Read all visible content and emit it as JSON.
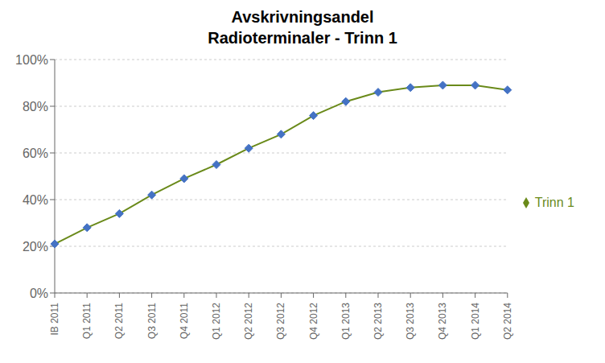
{
  "chart_data": {
    "type": "line",
    "title": "Avskrivningsandel\nRadioterminaler - Trinn 1",
    "categories": [
      "IB 2011",
      "Q1 2011",
      "Q2 2011",
      "Q3 2011",
      "Q4 2011",
      "Q1 2012",
      "Q2 2012",
      "Q3 2012",
      "Q4 2012",
      "Q1 2013",
      "Q2 2013",
      "Q3 2013",
      "Q4 2013",
      "Q1 2014",
      "Q2 2014"
    ],
    "series": [
      {
        "name": "Trinn 1",
        "color": "#6a8a1a",
        "marker": "diamond",
        "colors": [
          "#4472c4",
          "#4472c4",
          "#4472c4",
          "#4472c4",
          "#4472c4",
          "#4472c4",
          "#4472c4",
          "#4472c4",
          "#4472c4",
          "#4472c4",
          "#4472c4",
          "#4472c4",
          "#4472c4",
          "#4472c4",
          "#4472c4"
        ],
        "values": [
          0.21,
          0.28,
          0.34,
          0.42,
          0.49,
          0.55,
          0.62,
          0.68,
          0.76,
          0.82,
          0.86,
          0.88,
          0.89,
          0.89,
          0.87
        ]
      }
    ],
    "ylim": [
      0.0,
      1.0
    ],
    "yticks": [
      {
        "value": 0.0,
        "label": "0%"
      },
      {
        "value": 0.2,
        "label": "20%"
      },
      {
        "value": 0.4,
        "label": "40%"
      },
      {
        "value": 0.6,
        "label": "60%"
      },
      {
        "value": 0.8,
        "label": "80%"
      },
      {
        "value": 1.0,
        "label": "100%"
      }
    ],
    "grid": "y",
    "legend": "right"
  }
}
